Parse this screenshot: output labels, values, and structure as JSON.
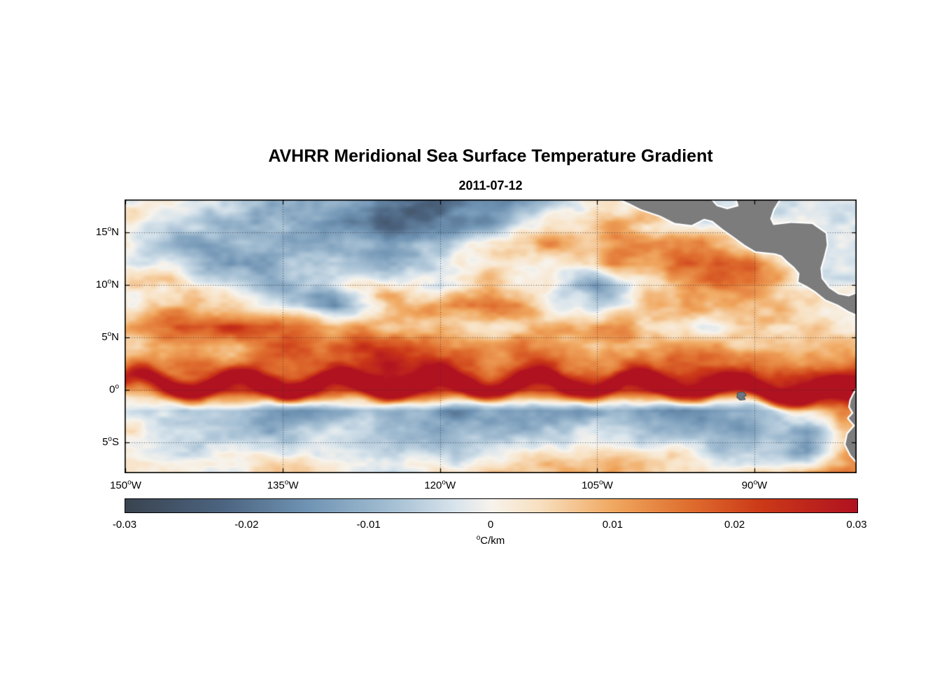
{
  "figure": {
    "title": "AVHRR Meridional Sea Surface Temperature Gradient",
    "date": "2011-07-12",
    "background_color": "#ffffff"
  },
  "axes": {
    "degree_symbol": "o",
    "x": {
      "range": [
        -150.1,
        -80.25
      ],
      "label_ticks": [
        {
          "value": "150",
          "hemisphere": "W",
          "lon": -150
        },
        {
          "value": "135",
          "hemisphere": "W",
          "lon": -135
        },
        {
          "value": "120",
          "hemisphere": "W",
          "lon": -120
        },
        {
          "value": "105",
          "hemisphere": "W",
          "lon": -105
        },
        {
          "value": "90",
          "hemisphere": "W",
          "lon": -90
        }
      ],
      "gridlines": [
        -135,
        -120,
        -105,
        -90
      ]
    },
    "y": {
      "range": [
        -7.93,
        18.13
      ],
      "label_ticks": [
        {
          "value": "15",
          "hemisphere": "N",
          "lat": 15
        },
        {
          "value": "10",
          "hemisphere": "N",
          "lat": 10
        },
        {
          "value": "5",
          "hemisphere": "N",
          "lat": 5
        },
        {
          "value": "0",
          "hemisphere": "",
          "lat": 0
        },
        {
          "value": "5",
          "hemisphere": "S",
          "lat": -5
        }
      ],
      "gridlines": [
        15,
        10,
        5,
        0,
        -5
      ]
    }
  },
  "colorbar": {
    "min": -0.03,
    "max": 0.03,
    "tick_labels": [
      "-0.03",
      "-0.02",
      "-0.01",
      "0",
      "0.01",
      "0.02",
      "0.03"
    ],
    "unit_degree": "o",
    "unit": "C/km",
    "stops": [
      {
        "v": -0.03,
        "c": "#3a4450"
      },
      {
        "v": -0.022,
        "c": "#4c6480"
      },
      {
        "v": -0.015,
        "c": "#7094b4"
      },
      {
        "v": -0.008,
        "c": "#a6c0d4"
      },
      {
        "v": -0.003,
        "c": "#d8e4ec"
      },
      {
        "v": 0.0,
        "c": "#f7f3ec"
      },
      {
        "v": 0.004,
        "c": "#f8e0c0"
      },
      {
        "v": 0.01,
        "c": "#f0a860"
      },
      {
        "v": 0.016,
        "c": "#e07030"
      },
      {
        "v": 0.022,
        "c": "#cc3a18"
      },
      {
        "v": 0.03,
        "c": "#b01220"
      }
    ]
  },
  "chart_data": {
    "type": "heatmap",
    "title": "AVHRR Meridional Sea Surface Temperature Gradient",
    "date": "2011-07-12",
    "units": "degC/km",
    "lon_range": [
      -150.1,
      -80.25
    ],
    "lat_range": [
      -7.93,
      18.13
    ],
    "value_range": [
      -0.03,
      0.03
    ],
    "grid_lons": [
      -150,
      -145,
      -140,
      -135,
      -130,
      -125,
      -120,
      -115,
      -110,
      -105,
      -100,
      -95,
      -90,
      -85,
      -80
    ],
    "grid_lats": [
      18,
      16,
      14,
      12,
      10,
      8,
      6,
      4,
      2,
      0,
      -2,
      -4,
      -6,
      -8
    ],
    "values": [
      [
        -0.002,
        0.001,
        -0.004,
        -0.01,
        -0.014,
        -0.022,
        -0.024,
        -0.018,
        -0.012,
        0.004,
        null,
        0.0,
        null,
        -0.004,
        -0.003
      ],
      [
        0.002,
        -0.006,
        -0.014,
        -0.008,
        -0.018,
        -0.026,
        -0.02,
        -0.014,
        0.002,
        0.008,
        0.005,
        null,
        null,
        -0.003,
        -0.002
      ],
      [
        0.003,
        -0.011,
        -0.007,
        -0.013,
        -0.01,
        -0.02,
        -0.014,
        0.005,
        0.009,
        0.004,
        0.008,
        0.014,
        null,
        -0.004,
        -0.002
      ],
      [
        0.001,
        -0.005,
        -0.016,
        -0.01,
        -0.012,
        -0.016,
        -0.007,
        0.004,
        -0.002,
        0.008,
        0.011,
        0.016,
        0.014,
        null,
        -0.003
      ],
      [
        0.004,
        0.002,
        -0.009,
        -0.014,
        -0.004,
        0.004,
        -0.006,
        0.006,
        0.004,
        -0.013,
        0.007,
        0.01,
        0.014,
        null,
        -0.002
      ],
      [
        0.003,
        0.008,
        0.002,
        -0.004,
        -0.017,
        0.006,
        0.011,
        0.016,
        0.006,
        -0.009,
        0.007,
        0.011,
        0.009,
        0.006,
        null
      ],
      [
        0.01,
        0.02,
        0.021,
        0.016,
        0.01,
        0.008,
        0.012,
        0.007,
        0.01,
        0.011,
        0.006,
        0.004,
        0.008,
        0.006,
        0.004
      ],
      [
        0.007,
        0.011,
        0.01,
        0.014,
        0.017,
        0.021,
        0.018,
        0.011,
        0.016,
        0.01,
        0.011,
        0.014,
        0.011,
        0.009,
        0.008
      ],
      [
        0.011,
        0.018,
        0.014,
        0.012,
        0.017,
        0.023,
        0.019,
        0.014,
        0.019,
        0.014,
        0.017,
        0.019,
        0.017,
        0.014,
        0.019
      ],
      [
        0.014,
        0.024,
        0.021,
        0.024,
        0.019,
        0.021,
        0.024,
        0.019,
        0.024,
        0.021,
        0.027,
        0.024,
        0.021,
        0.027,
        0.029
      ],
      [
        -0.008,
        -0.012,
        -0.01,
        -0.014,
        -0.012,
        -0.01,
        -0.014,
        -0.011,
        -0.008,
        -0.01,
        -0.012,
        -0.016,
        -0.014,
        0.004,
        0.014
      ],
      [
        -0.004,
        -0.006,
        -0.008,
        -0.01,
        -0.006,
        -0.008,
        -0.01,
        -0.006,
        -0.004,
        -0.006,
        -0.008,
        -0.006,
        -0.01,
        -0.012,
        0.01
      ],
      [
        0.002,
        -0.003,
        -0.004,
        -0.005,
        -0.002,
        -0.004,
        -0.006,
        -0.003,
        0.004,
        0.006,
        0.004,
        0.002,
        -0.008,
        -0.014,
        0.017
      ],
      [
        0.003,
        0.002,
        -0.002,
        0.004,
        0.002,
        -0.003,
        0.003,
        0.005,
        0.006,
        0.008,
        0.006,
        0.004,
        0.003,
        0.01,
        0.014
      ]
    ],
    "equatorial_front": {
      "amplitude": 0.021,
      "base_lat": 0.55,
      "meander_amplitude": 0.9,
      "wavelength_deg": 9.5,
      "phase_deg": 151,
      "width_deg": 0.9,
      "tilt_start_lon": -100,
      "tilt_per_deg": -0.06
    },
    "noise": {
      "seed": 7,
      "amplitude": 0.0105,
      "octaves": [
        {
          "sx": 120,
          "sy": 64,
          "a": 0.85
        },
        {
          "sx": 46,
          "sy": 24,
          "a": 1.0
        },
        {
          "sx": 22,
          "sy": 12,
          "a": 0.55
        },
        {
          "sx": 11,
          "sy": 6.5,
          "a": 0.28
        }
      ]
    },
    "features": [
      "Strong positive (red) meridional SST gradient front along ~0.5N with tropical-instability-wave cusps across the basin",
      "Large negative (dark blue) region 12-18N between about 130W and 108W",
      "Orange positive band near 5-6N from about 145W to 133W",
      "Weak negative (light blue) band 1-4S across the basin",
      "Strong positive gradients near the Ecuador/Peru coast around 80-82W",
      "Galapagos Islands visible near 91W, 0.5S"
    ]
  },
  "land": {
    "fill": "#7c7c7c",
    "halo": "#ffffff",
    "galapagos_stroke": "#33414f",
    "galapagos_fill": "#6b7682",
    "polygons": {
      "central_america": [
        [
          -103.6,
          18.5
        ],
        [
          -102.0,
          17.8
        ],
        [
          -100.8,
          17.2
        ],
        [
          -99.0,
          16.6
        ],
        [
          -97.6,
          15.9
        ],
        [
          -96.0,
          15.7
        ],
        [
          -94.8,
          16.3
        ],
        [
          -94.0,
          16.1
        ],
        [
          -93.0,
          15.3
        ],
        [
          -92.0,
          14.6
        ],
        [
          -90.9,
          13.8
        ],
        [
          -89.9,
          13.2
        ],
        [
          -88.0,
          13.0
        ],
        [
          -87.4,
          12.8
        ],
        [
          -86.9,
          12.3
        ],
        [
          -86.2,
          11.7
        ],
        [
          -85.7,
          11.1
        ],
        [
          -85.8,
          10.3
        ],
        [
          -85.0,
          9.9
        ],
        [
          -84.2,
          9.4
        ],
        [
          -83.2,
          8.6
        ],
        [
          -82.0,
          8.1
        ],
        [
          -81.0,
          7.5
        ],
        [
          -80.3,
          7.2
        ],
        [
          -79.0,
          8.2
        ],
        [
          -79.2,
          9.6
        ],
        [
          -80.2,
          9.2
        ],
        [
          -81.0,
          8.9
        ],
        [
          -82.0,
          9.1
        ],
        [
          -82.9,
          9.7
        ],
        [
          -83.6,
          10.6
        ],
        [
          -83.7,
          11.6
        ],
        [
          -83.4,
          12.6
        ],
        [
          -83.1,
          13.8
        ],
        [
          -83.2,
          14.9
        ],
        [
          -84.5,
          15.8
        ],
        [
          -86.5,
          15.9
        ],
        [
          -88.2,
          15.7
        ],
        [
          -88.5,
          16.3
        ],
        [
          -88.2,
          17.2
        ],
        [
          -87.4,
          18.5
        ],
        [
          -91.8,
          18.5
        ],
        [
          -91.5,
          17.5
        ],
        [
          -92.6,
          17.2
        ],
        [
          -93.6,
          17.5
        ],
        [
          -94.5,
          18.5
        ]
      ],
      "south_america": [
        [
          -78.0,
          2.0
        ],
        [
          -79.3,
          1.2
        ],
        [
          -80.0,
          0.8
        ],
        [
          -80.1,
          0.3
        ],
        [
          -80.5,
          -0.4
        ],
        [
          -80.8,
          -1.0
        ],
        [
          -80.9,
          -1.6
        ],
        [
          -80.55,
          -2.2
        ],
        [
          -81.0,
          -2.7
        ],
        [
          -80.4,
          -3.4
        ],
        [
          -81.1,
          -4.2
        ],
        [
          -81.3,
          -5.2
        ],
        [
          -80.8,
          -6.2
        ],
        [
          -80.0,
          -7.1
        ],
        [
          -79.4,
          -8.2
        ],
        [
          -78.0,
          -8.8
        ]
      ],
      "galapagos": [
        [
          -91.6,
          -0.3
        ],
        [
          -91.1,
          -0.2
        ],
        [
          -90.8,
          -0.5
        ],
        [
          -91.05,
          -0.65
        ],
        [
          -90.9,
          -0.9
        ],
        [
          -91.35,
          -0.95
        ],
        [
          -91.65,
          -0.7
        ]
      ]
    }
  }
}
